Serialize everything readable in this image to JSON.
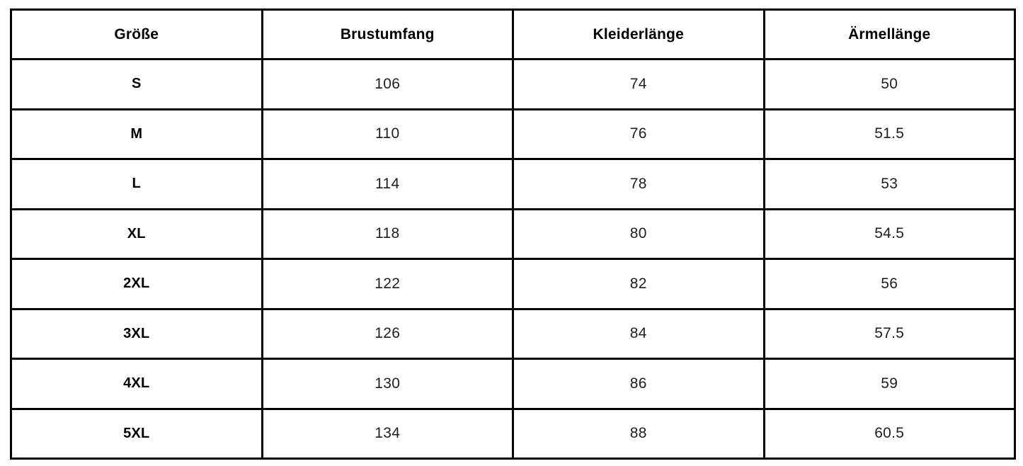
{
  "colors": {
    "border": "#000000",
    "background": "#ffffff",
    "header_text": "#000000",
    "cell_text": "#1f1f1f"
  },
  "chart_data": {
    "type": "table",
    "title": "",
    "columns": [
      "Größe",
      "Brustumfang",
      "Kleiderlänge",
      "Ärmellänge"
    ],
    "rows": [
      [
        "S",
        "106",
        "74",
        "50"
      ],
      [
        "M",
        "110",
        "76",
        "51.5"
      ],
      [
        "L",
        "114",
        "78",
        "53"
      ],
      [
        "XL",
        "118",
        "80",
        "54.5"
      ],
      [
        "2XL",
        "122",
        "82",
        "56"
      ],
      [
        "3XL",
        "126",
        "84",
        "57.5"
      ],
      [
        "4XL",
        "130",
        "86",
        "59"
      ],
      [
        "5XL",
        "134",
        "88",
        "60.5"
      ]
    ]
  }
}
